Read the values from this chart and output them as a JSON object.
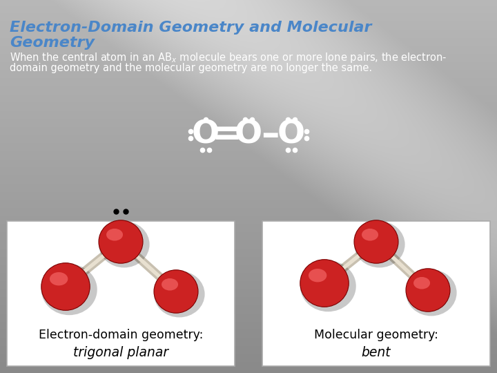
{
  "title_line1": "Electron-Domain Geometry and Molecular",
  "title_line2": "Geometry",
  "title_color": "#4a86c8",
  "title_fontsize": 16,
  "body_fontsize": 10.5,
  "body_color": "#ffffff",
  "label1_line1": "Electron-domain geometry:",
  "label1_line2": "trigonal planar",
  "label2_line1": "Molecular geometry:",
  "label2_line2": "bent",
  "label_fontsize": 12.5,
  "atom_red": "#cc2222",
  "bond_color_outer": "#c8c0b0",
  "bond_color_inner": "#e8e0d0",
  "lewis_fontsize": 34,
  "dot_ms": 4.5,
  "box_edge_color": "#aaaaaa"
}
